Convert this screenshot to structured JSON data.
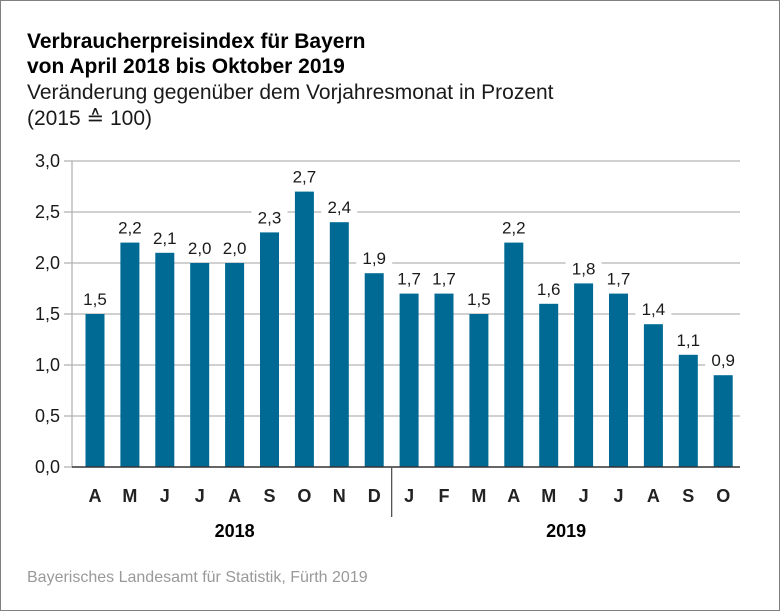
{
  "chart_data": {
    "type": "bar",
    "title": "Verbraucherpreisindex für Bayern\nvon April 2018 bis Oktober 2019",
    "title_lines": [
      "Verbraucherpreisindex für Bayern",
      "von April 2018 bis Oktober 2019"
    ],
    "subtitle_lines": [
      "Veränderung gegenüber dem Vorjahresmonat in Prozent",
      "(2015 ≙ 100)"
    ],
    "xlabel": "",
    "ylabel": "",
    "ylim": [
      0,
      3.0
    ],
    "yticks": [
      0,
      0.5,
      1.0,
      1.5,
      2.0,
      2.5,
      3.0
    ],
    "ytick_labels": [
      "0,0",
      "0,5",
      "1,0",
      "1,5",
      "2,0",
      "2,5",
      "3,0"
    ],
    "grid": true,
    "categories": [
      "A",
      "M",
      "J",
      "J",
      "A",
      "S",
      "O",
      "N",
      "D",
      "J",
      "F",
      "M",
      "A",
      "M",
      "J",
      "J",
      "A",
      "S",
      "O"
    ],
    "category_full": [
      "April 2018",
      "Mai 2018",
      "Juni 2018",
      "Juli 2018",
      "August 2018",
      "September 2018",
      "Oktober 2018",
      "November 2018",
      "Dezember 2018",
      "Januar 2019",
      "Februar 2019",
      "März 2019",
      "April 2019",
      "Mai 2019",
      "Juni 2019",
      "Juli 2019",
      "August 2019",
      "September 2019",
      "Oktober 2019"
    ],
    "values": [
      1.5,
      2.2,
      2.1,
      2.0,
      2.0,
      2.3,
      2.7,
      2.4,
      1.9,
      1.7,
      1.7,
      1.5,
      2.2,
      1.6,
      1.8,
      1.7,
      1.4,
      1.1,
      0.9
    ],
    "data_labels": [
      "1,5",
      "2,2",
      "2,1",
      "2,0",
      "2,0",
      "2,3",
      "2,7",
      "2,4",
      "1,9",
      "1,7",
      "1,7",
      "1,5",
      "2,2",
      "1,6",
      "1,8",
      "1,7",
      "1,4",
      "1,1",
      "0,9"
    ],
    "groups": [
      {
        "label": "2018",
        "start": 0,
        "end": 8
      },
      {
        "label": "2019",
        "start": 9,
        "end": 18
      }
    ],
    "bar_color": "#006a94",
    "source": "Bayerisches Landesamt für Statistik, Fürth 2019"
  }
}
